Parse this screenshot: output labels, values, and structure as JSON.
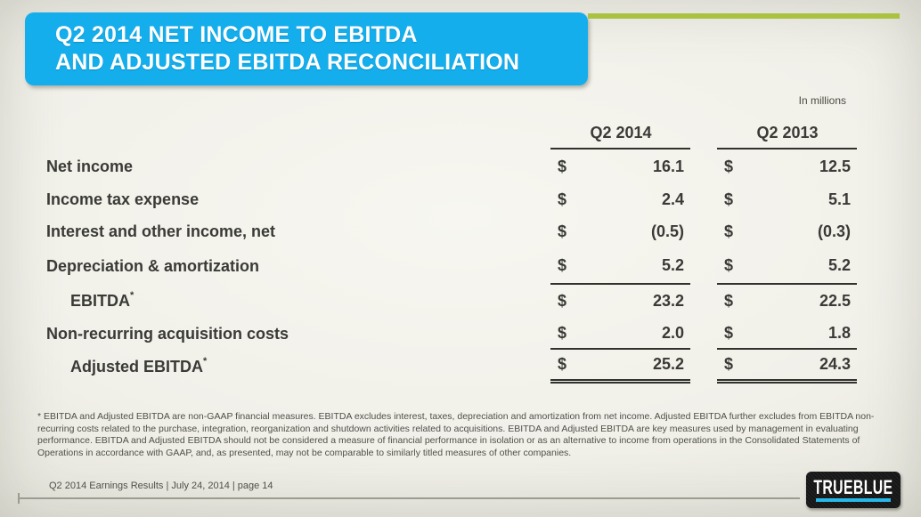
{
  "slide": {
    "title_line1": "Q2 2014 NET INCOME TO EBITDA",
    "title_line2": "AND ADJUSTED EBITDA RECONCILIATION",
    "units_note": "In millions",
    "colors": {
      "title_banner": "#14aeec",
      "accent_green": "#a9c23f",
      "table_text": "#3a3a36",
      "logo_underline": "#29b7e8"
    }
  },
  "table": {
    "columns": [
      "Q2 2014",
      "Q2 2013"
    ],
    "currency_symbol": "$",
    "rows": [
      {
        "label": "Net income",
        "q2_2014": "16.1",
        "q2_2013": "12.5"
      },
      {
        "label": "Income tax expense",
        "q2_2014": "2.4",
        "q2_2013": "5.1"
      },
      {
        "label": "Interest and other income, net",
        "q2_2014": "(0.5)",
        "q2_2013": "(0.3)"
      },
      {
        "label": "Depreciation & amortization",
        "q2_2014": "5.2",
        "q2_2013": "5.2",
        "rule_below": "single"
      },
      {
        "label": "EBITDA",
        "sup": "*",
        "indent": true,
        "q2_2014": "23.2",
        "q2_2013": "22.5"
      },
      {
        "label": "Non-recurring acquisition costs",
        "q2_2014": "2.0",
        "q2_2013": "1.8",
        "rule_below": "single"
      },
      {
        "label": "Adjusted EBITDA",
        "sup": "*",
        "indent": true,
        "q2_2014": "25.2",
        "q2_2013": "24.3",
        "rule_below": "double"
      }
    ]
  },
  "footnote": "* EBITDA and Adjusted EBITDA are non-GAAP financial measures. EBITDA excludes interest, taxes, depreciation and amortization from net income. Adjusted EBITDA further excludes from EBITDA non-recurring costs related to the purchase, integration, reorganization and shutdown activities related to acquisitions. EBITDA and Adjusted EBITDA are key measures used by management in evaluating performance. EBITDA and Adjusted EBITDA should not be considered a measure of financial performance in isolation or as an alternative to income from operations in the Consolidated Statements of Operations in accordance with GAAP, and, as presented, may not be comparable to similarly titled measures of other companies.",
  "footer": {
    "text": "Q2 2014 Earnings Results | July 24, 2014  | page 14"
  },
  "logo": {
    "text": "TRUEBLUE"
  }
}
